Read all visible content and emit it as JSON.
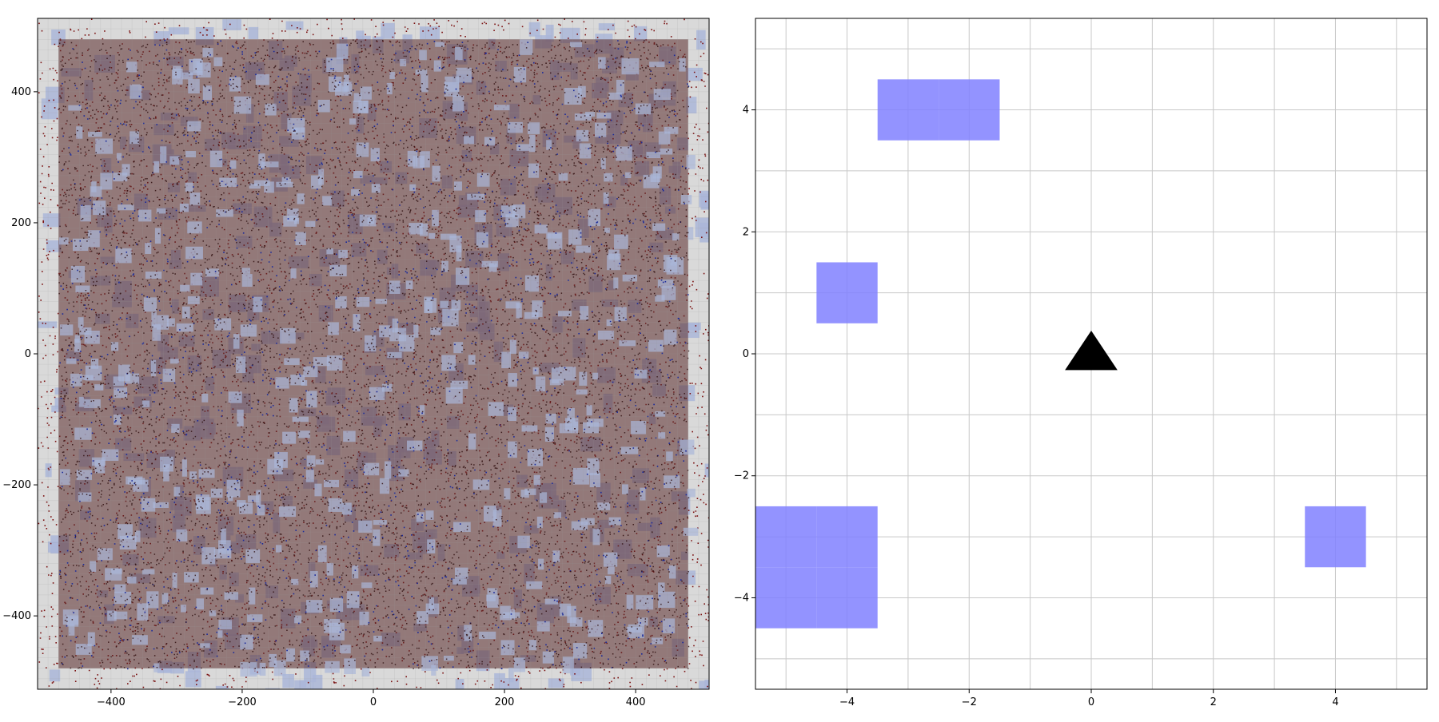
{
  "world_map": {
    "x_ticks": [
      -400,
      -200,
      0,
      200,
      400
    ],
    "y_ticks": [
      400,
      200,
      0,
      -200,
      -400
    ],
    "xlim": [
      -512,
      512
    ],
    "ylim": [
      -512,
      512
    ],
    "inner_region": [
      -480,
      480
    ],
    "colors": {
      "terrain_base": "#c6c6c6",
      "water": "#aab6d8",
      "dark_overlay": "#5a2a2a",
      "red_dot": "#7a1010",
      "blue_dot": "#1a2a9a",
      "border_bg": "#d9d9d9"
    }
  },
  "local_view": {
    "x_ticks": [
      -4,
      -2,
      0,
      2,
      4
    ],
    "y_ticks": [
      4,
      2,
      0,
      -2,
      -4
    ],
    "xlim": [
      -5.5,
      5.5
    ],
    "ylim": [
      -5.5,
      5.5
    ],
    "grid_step": 1,
    "blocked_cells": [
      {
        "x": -3,
        "y": 4
      },
      {
        "x": -2,
        "y": 4
      },
      {
        "x": -4,
        "y": 1
      },
      {
        "x": -5,
        "y": -3
      },
      {
        "x": -4,
        "y": -3
      },
      {
        "x": -5,
        "y": -4
      },
      {
        "x": -4,
        "y": -4
      },
      {
        "x": 4,
        "y": -3
      }
    ],
    "agent": {
      "x": 0,
      "y": 0,
      "shape": "triangle-up"
    },
    "colors": {
      "blocked": "#8080ff",
      "grid": "#c8c8c8",
      "agent": "#000000"
    }
  }
}
